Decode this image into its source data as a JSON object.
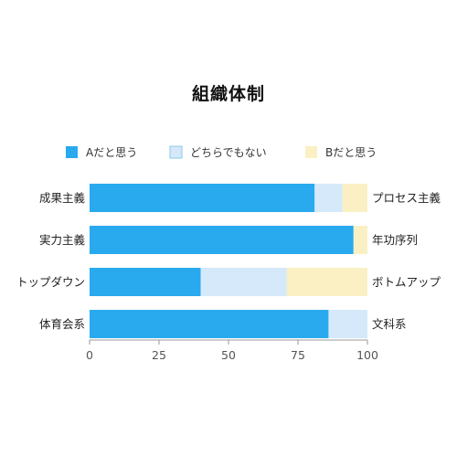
{
  "chart_data": {
    "type": "bar",
    "orientation": "horizontal",
    "stacked": true,
    "title": "組織体制",
    "categories": [
      "成果主義",
      "実力主義",
      "トップダウン",
      "体育会系"
    ],
    "right_labels": [
      "プロセス主義",
      "年功序列",
      "ボトムアップ",
      "文科系"
    ],
    "series": [
      {
        "name": "Aだと思う",
        "color": "#29aaee",
        "values": [
          81,
          95,
          40,
          86
        ]
      },
      {
        "name": "どちらでもない",
        "color": "#d5e9fb",
        "values": [
          10,
          0,
          31,
          14
        ]
      },
      {
        "name": "Bだと思う",
        "color": "#faf0c4",
        "values": [
          9,
          5,
          29,
          0
        ]
      }
    ],
    "xlim": [
      0,
      100
    ],
    "xticks": [
      0,
      25,
      50,
      75,
      100
    ],
    "legend_position": "top",
    "grid": false
  }
}
